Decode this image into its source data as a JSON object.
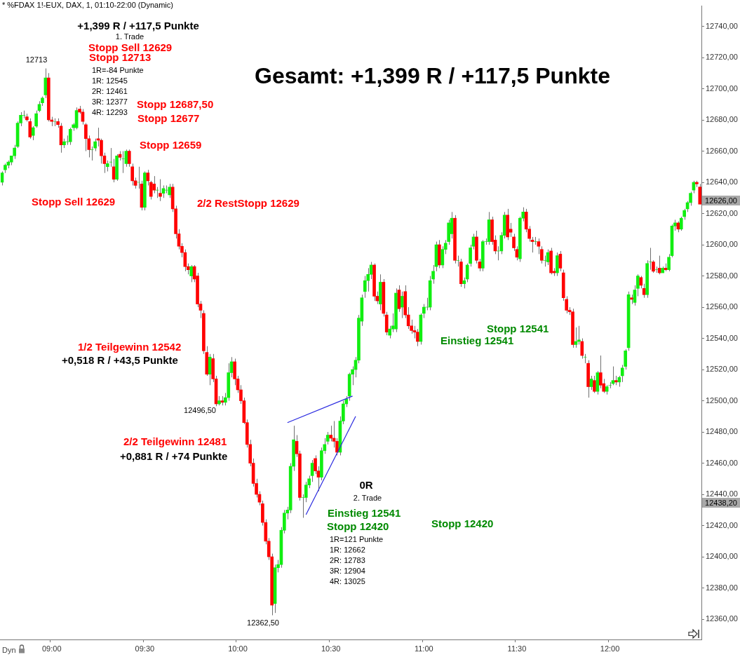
{
  "chart_data": {
    "type": "candlestick",
    "title": "* %FDAX 1!-EUX, DAX, 1, 01:10-22:00 (Dynamic)",
    "categories": [
      null,
      null,
      null,
      null,
      null,
      null,
      null,
      null,
      null,
      null,
      null,
      null,
      null,
      null,
      null,
      null,
      "09:00",
      null,
      null,
      null,
      null,
      null,
      null,
      null,
      null,
      null,
      null,
      null,
      null,
      null,
      null,
      null,
      null,
      null,
      null,
      null,
      null,
      null,
      null,
      null,
      null,
      null,
      null,
      null,
      null,
      null,
      "09:30",
      null,
      null,
      null,
      null,
      null,
      null,
      null,
      null,
      null,
      null,
      null,
      null,
      null,
      null,
      null,
      null,
      null,
      null,
      null,
      null,
      null,
      null,
      null,
      null,
      null,
      null,
      null,
      null,
      null,
      "10:00",
      null,
      null,
      null,
      null,
      null,
      null,
      null,
      null,
      null,
      null,
      null,
      null,
      null,
      null,
      null,
      null,
      null,
      null,
      null,
      null,
      null,
      null,
      null,
      null,
      null,
      null,
      null,
      null,
      null,
      "10:30",
      null,
      null,
      null,
      null,
      null,
      null,
      null,
      null,
      null,
      null,
      null,
      null,
      null,
      null,
      null,
      null,
      null,
      null,
      null,
      null,
      null,
      null,
      null,
      null,
      null,
      null,
      null,
      null,
      null,
      "11:00",
      null,
      null,
      null,
      null,
      null,
      null,
      null,
      null,
      null,
      null,
      null,
      null,
      null,
      null,
      null,
      null,
      null,
      null,
      null,
      null,
      null,
      null,
      null,
      null,
      null,
      null,
      null,
      null,
      null,
      "11:30",
      null,
      null,
      null,
      null,
      null,
      null,
      null,
      null,
      null,
      null,
      null,
      null,
      null,
      null,
      null,
      null,
      null,
      null,
      null,
      null,
      null,
      null,
      null,
      null,
      null,
      null,
      null,
      null,
      null,
      "12:00",
      null,
      null,
      null,
      null,
      null,
      null,
      null,
      null,
      null,
      null,
      null,
      null,
      null,
      null,
      null,
      null,
      null,
      null,
      null,
      null,
      null,
      null,
      null,
      null,
      null,
      null,
      null,
      null,
      null
    ],
    "ohlc": [
      [
        12640,
        12647,
        12638,
        12646
      ],
      [
        12648,
        12652,
        12646,
        12651
      ],
      [
        12651,
        12654,
        12649,
        12653
      ],
      [
        12653,
        12657,
        12651,
        12657
      ],
      [
        12657,
        12664,
        12655,
        12662
      ],
      [
        12663,
        12679,
        12662,
        12678
      ],
      [
        12678,
        12685,
        12676,
        12683
      ],
      [
        12683,
        12686,
        12681,
        12683
      ],
      [
        12682,
        12684,
        12679,
        12680
      ],
      [
        12679,
        12681,
        12668,
        12669
      ],
      [
        12670,
        12676,
        12667,
        12675
      ],
      [
        12676,
        12686,
        12675,
        12684
      ],
      [
        12686,
        12692,
        12685,
        12690
      ],
      [
        12691,
        12695,
        12689,
        12694
      ],
      [
        12696,
        12713,
        12694,
        12707
      ],
      [
        12707,
        12710,
        12679,
        12680
      ],
      [
        12680,
        12682,
        12676,
        12679
      ],
      [
        12679,
        12681,
        12676,
        12679
      ],
      [
        12679,
        12681,
        12675,
        12677
      ],
      [
        12676,
        12678,
        12659,
        12664
      ],
      [
        12664,
        12668,
        12662,
        12666
      ],
      [
        12666,
        12670,
        12664,
        12666
      ],
      [
        12666,
        12675,
        12664,
        12674
      ],
      [
        12675,
        12678,
        12673,
        12677
      ],
      [
        12675,
        12688,
        12674,
        12686
      ],
      [
        12687,
        12689,
        12684,
        12685
      ],
      [
        12685,
        12687,
        12677,
        12679
      ],
      [
        12677,
        12678,
        12660,
        12668
      ],
      [
        12668,
        12670,
        12656,
        12661
      ],
      [
        12661,
        12663,
        12654,
        12661
      ],
      [
        12662,
        12668,
        12660,
        12666
      ],
      [
        12668,
        12675,
        12663,
        12667
      ],
      [
        12667,
        12668,
        12652,
        12657
      ],
      [
        12657,
        12659,
        12646,
        12652
      ],
      [
        12650,
        12654,
        12647,
        12652
      ],
      [
        12653,
        12662,
        12650,
        12653
      ],
      [
        12650,
        12655,
        12640,
        12642
      ],
      [
        12642,
        12658,
        12641,
        12657
      ],
      [
        12658,
        12660,
        12654,
        12656
      ],
      [
        12655,
        12660,
        12646,
        12655
      ],
      [
        12652,
        12661,
        12650,
        12660
      ],
      [
        12660,
        12661,
        12650,
        12652
      ],
      [
        12650,
        12652,
        12638,
        12641
      ],
      [
        12641,
        12643,
        12636,
        12638
      ],
      [
        12640,
        12650,
        12636,
        12640
      ],
      [
        12639,
        12641,
        12622,
        12624
      ],
      [
        12624,
        12647,
        12622,
        12646
      ],
      [
        12646,
        12648,
        12638,
        12641
      ],
      [
        12640,
        12641,
        12629,
        12631
      ],
      [
        12639,
        12644,
        12633,
        12635
      ],
      [
        12635,
        12637,
        12630,
        12635
      ],
      [
        12633,
        12642,
        12628,
        12631
      ],
      [
        12633,
        12638,
        12630,
        12636
      ],
      [
        12635,
        12638,
        12633,
        12635
      ],
      [
        12632,
        12639,
        12630,
        12637
      ],
      [
        12637,
        12639,
        12621,
        12623
      ],
      [
        12623,
        12625,
        12604,
        12607
      ],
      [
        12607,
        12610,
        12597,
        12599
      ],
      [
        12599,
        12601,
        12592,
        12595
      ],
      [
        12595,
        12597,
        12583,
        12586
      ],
      [
        12586,
        12588,
        12581,
        12584
      ],
      [
        12580,
        12587,
        12576,
        12586
      ],
      [
        12586,
        12587,
        12576,
        12578
      ],
      [
        12580,
        12582,
        12560,
        12562
      ],
      [
        12562,
        12564,
        12553,
        12558
      ],
      [
        12556,
        12558,
        12530,
        12532
      ],
      [
        12531,
        12535,
        12516,
        12517
      ],
      [
        12517,
        12530,
        12510,
        12528
      ],
      [
        12527,
        12530,
        12512,
        12514
      ],
      [
        12514,
        12516,
        12496.5,
        12498
      ],
      [
        12498,
        12503,
        12497,
        12500
      ],
      [
        12500,
        12503,
        12497,
        12499
      ],
      [
        12499,
        12505,
        12497,
        12502
      ],
      [
        12502,
        12524,
        12500,
        12518
      ],
      [
        12518,
        12528,
        12515,
        12525
      ],
      [
        12525,
        12527,
        12510,
        12514
      ],
      [
        12514,
        12516,
        12505,
        12507
      ],
      [
        12507,
        12510,
        12498,
        12500
      ],
      [
        12500,
        12502,
        12485,
        12486
      ],
      [
        12486,
        12488,
        12470,
        12472
      ],
      [
        12472,
        12475,
        12458,
        12460
      ],
      [
        12460,
        12463,
        12445,
        12447
      ],
      [
        12447,
        12450,
        12438,
        12440
      ],
      [
        12440,
        12442,
        12433,
        12435
      ],
      [
        12434,
        12436,
        12420,
        12422
      ],
      [
        12422,
        12424,
        12408,
        12410
      ],
      [
        12410,
        12412,
        12398,
        12400
      ],
      [
        12400,
        12402,
        12362.5,
        12369
      ],
      [
        12370,
        12395,
        12364,
        12393
      ],
      [
        12393,
        12398,
        12390,
        12395
      ],
      [
        12395,
        12419,
        12393,
        12417
      ],
      [
        12417,
        12430,
        12415,
        12428
      ],
      [
        12428,
        12432,
        12424,
        12430
      ],
      [
        12430,
        12460,
        12428,
        12458
      ],
      [
        12458,
        12484,
        12455,
        12475
      ],
      [
        12474,
        12478,
        12464,
        12466
      ],
      [
        12466,
        12468,
        12436,
        12438
      ],
      [
        12438,
        12440,
        12425,
        12438
      ],
      [
        12438,
        12448,
        12435,
        12446
      ],
      [
        12446,
        12452,
        12444,
        12450
      ],
      [
        12452,
        12462,
        12448,
        12460
      ],
      [
        12463,
        12465,
        12453,
        12455
      ],
      [
        12455,
        12458,
        12442,
        12451
      ],
      [
        12451,
        12470,
        12449,
        12468
      ],
      [
        12468,
        12476,
        12466,
        12472
      ],
      [
        12474,
        12480,
        12472,
        12478
      ],
      [
        12478,
        12484,
        12474,
        12476
      ],
      [
        12476,
        12487,
        12470,
        12474
      ],
      [
        12474,
        12476,
        12465,
        12467
      ],
      [
        12467,
        12490,
        12465,
        12487
      ],
      [
        12487,
        12500,
        12485,
        12498
      ],
      [
        12498,
        12503,
        12496,
        12501
      ],
      [
        12503,
        12518,
        12500,
        12517
      ],
      [
        12517,
        12522,
        12510,
        12520
      ],
      [
        12520,
        12528,
        12515,
        12526
      ],
      [
        12526,
        12555,
        12524,
        12553
      ],
      [
        12551,
        12568,
        12548,
        12566
      ],
      [
        12570,
        12580,
        12566,
        12577
      ],
      [
        12577,
        12585,
        12570,
        12581
      ],
      [
        12581,
        12589,
        12578,
        12587
      ],
      [
        12587,
        12588,
        12564,
        12567
      ],
      [
        12567,
        12570,
        12562,
        12564
      ],
      [
        12562,
        12581,
        12558,
        12576
      ],
      [
        12576,
        12578,
        12554,
        12556
      ],
      [
        12555,
        12557,
        12542,
        12544
      ],
      [
        12542,
        12548,
        12540,
        12546
      ],
      [
        12546,
        12556,
        12544,
        12548
      ],
      [
        12546,
        12572,
        12544,
        12569
      ],
      [
        12571,
        12574,
        12557,
        12559
      ],
      [
        12560,
        12570,
        12553,
        12567
      ],
      [
        12570,
        12574,
        12553,
        12555
      ],
      [
        12555,
        12560,
        12546,
        12548
      ],
      [
        12548,
        12552,
        12543,
        12545
      ],
      [
        12545,
        12548,
        12540,
        12544
      ],
      [
        12544,
        12546,
        12535,
        12538
      ],
      [
        12538,
        12556,
        12536,
        12555
      ],
      [
        12556,
        12562,
        12553,
        12560
      ],
      [
        12560,
        12566,
        12558,
        12560
      ],
      [
        12560,
        12580,
        12558,
        12577
      ],
      [
        12578,
        12587,
        12575,
        12583
      ],
      [
        12586,
        12602,
        12583,
        12600
      ],
      [
        12600,
        12603,
        12585,
        12587
      ],
      [
        12587,
        12599,
        12585,
        12597
      ],
      [
        12597,
        12603,
        12594,
        12601
      ],
      [
        12602,
        12616,
        12600,
        12614
      ],
      [
        12607,
        12621,
        12604,
        12617
      ],
      [
        12617,
        12619,
        12588,
        12590
      ],
      [
        12590,
        12593,
        12586,
        12590
      ],
      [
        12589,
        12591,
        12573,
        12575
      ],
      [
        12575,
        12579,
        12572,
        12577
      ],
      [
        12578,
        12588,
        12576,
        12587
      ],
      [
        12588,
        12600,
        12586,
        12598
      ],
      [
        12599,
        12607,
        12597,
        12605
      ],
      [
        12605,
        12609,
        12588,
        12590
      ],
      [
        12589,
        12591,
        12583,
        12585
      ],
      [
        12585,
        12603,
        12583,
        12602
      ],
      [
        12602,
        12604,
        12600,
        12602
      ],
      [
        12602,
        12621,
        12600,
        12616
      ],
      [
        12616,
        12618,
        12600,
        12602
      ],
      [
        12603,
        12606,
        12594,
        12596
      ],
      [
        12596,
        12599,
        12590,
        12596
      ],
      [
        12596,
        12608,
        12594,
        12606
      ],
      [
        12606,
        12621,
        12604,
        12619
      ],
      [
        12619,
        12623,
        12603,
        12605
      ],
      [
        12610,
        12614,
        12605,
        12608
      ],
      [
        12605,
        12607,
        12596,
        12598
      ],
      [
        12597,
        12599,
        12590,
        12592
      ],
      [
        12591,
        12618,
        12589,
        12617
      ],
      [
        12617,
        12624,
        12615,
        12621
      ],
      [
        12621,
        12623,
        12608,
        12610
      ],
      [
        12610,
        12612,
        12602,
        12604
      ],
      [
        12603,
        12605,
        12595,
        12602
      ],
      [
        12602,
        12605,
        12600,
        12602
      ],
      [
        12602,
        12604,
        12594,
        12599
      ],
      [
        12597,
        12599,
        12588,
        12590
      ],
      [
        12590,
        12593,
        12586,
        12590
      ],
      [
        12589,
        12597,
        12587,
        12595
      ],
      [
        12596,
        12598,
        12581,
        12582
      ],
      [
        12583,
        12585,
        12580,
        12582
      ],
      [
        12582,
        12595,
        12580,
        12593
      ],
      [
        12594,
        12596,
        12583,
        12585
      ],
      [
        12582,
        12584,
        12564,
        12566
      ],
      [
        12565,
        12567,
        12556,
        12558
      ],
      [
        12558,
        12560,
        12555,
        12557
      ],
      [
        12557,
        12559,
        12534,
        12536
      ],
      [
        12536,
        12547,
        12534,
        12538
      ],
      [
        12538,
        12548,
        12536,
        12539
      ],
      [
        12538,
        12540,
        12527,
        12529
      ],
      [
        12528,
        12530,
        12524,
        12528
      ],
      [
        12524,
        12526,
        12502,
        12509
      ],
      [
        12509,
        12516,
        12507,
        12514
      ],
      [
        12513,
        12516,
        12505,
        12506
      ],
      [
        12506,
        12519,
        12504,
        12518
      ],
      [
        12518,
        12529,
        12508,
        12510
      ],
      [
        12511,
        12514,
        12505,
        12506
      ],
      [
        12506,
        12510,
        12504,
        12509
      ],
      [
        12510,
        12512,
        12508,
        12510
      ],
      [
        12511,
        12522,
        12510,
        12513
      ],
      [
        12513,
        12516,
        12510,
        12512
      ],
      [
        12512,
        12516,
        12509,
        12515
      ],
      [
        12516,
        12523,
        12512,
        12521
      ],
      [
        12522,
        12533,
        12520,
        12532
      ],
      [
        12534,
        12570,
        12532,
        12568
      ],
      [
        12566,
        12568,
        12562,
        12565
      ],
      [
        12563,
        12574,
        12561,
        12571
      ],
      [
        12572,
        12581,
        12567,
        12580
      ],
      [
        12579,
        12580,
        12572,
        12574
      ],
      [
        12572,
        12575,
        12566,
        12568
      ],
      [
        12568,
        12590,
        12566,
        12588
      ],
      [
        12589,
        12598,
        12584,
        12589
      ],
      [
        12589,
        12590,
        12582,
        12583
      ],
      [
        12584,
        12586,
        12582,
        12584
      ],
      [
        12585,
        12593,
        12581,
        12582
      ],
      [
        12582,
        12586,
        12582,
        12585
      ],
      [
        12585,
        12588,
        12583,
        12584
      ],
      [
        12584,
        12594,
        12583,
        12592
      ],
      [
        12593,
        12613,
        12592,
        12612
      ],
      [
        12612,
        12616,
        12609,
        12614
      ],
      [
        12614,
        12615,
        12608,
        12610
      ],
      [
        12610,
        12618,
        12609,
        12617
      ],
      [
        12618,
        12623,
        12616,
        12622
      ],
      [
        12623,
        12628,
        12621,
        12627
      ],
      [
        12627,
        12634,
        12625,
        12633
      ],
      [
        12635,
        12641,
        12633,
        12640
      ],
      [
        12640,
        12641,
        12637,
        12639
      ],
      [
        12637,
        12639,
        12626,
        12626
      ]
    ],
    "ylim": [
      12347,
      12753
    ],
    "yticks": [
      {
        "value": 12360,
        "label": "12360,00"
      },
      {
        "value": 12380,
        "label": "12380,00"
      },
      {
        "value": 12400,
        "label": "12400,00"
      },
      {
        "value": 12420,
        "label": "12420,00"
      },
      {
        "value": 12440,
        "label": "12440,00"
      },
      {
        "value": 12460,
        "label": "12460,00"
      },
      {
        "value": 12480,
        "label": "12480,00"
      },
      {
        "value": 12500,
        "label": "12500,00"
      },
      {
        "value": 12520,
        "label": "12520,00"
      },
      {
        "value": 12540,
        "label": "12540,00"
      },
      {
        "value": 12560,
        "label": "12560,00"
      },
      {
        "value": 12580,
        "label": "12580,00"
      },
      {
        "value": 12600,
        "label": "12600,00"
      },
      {
        "value": 12620,
        "label": "12620,00"
      },
      {
        "value": 12640,
        "label": "12640,00"
      },
      {
        "value": 12660,
        "label": "12660,00"
      },
      {
        "value": 12680,
        "label": "12680,00"
      },
      {
        "value": 12700,
        "label": "12700,00"
      },
      {
        "value": 12720,
        "label": "12720,00"
      },
      {
        "value": 12740,
        "label": "12740,00"
      }
    ],
    "annotations": [
      "+1,399 R / +117,5 Punkte",
      "1. Trade",
      "Stopp Sell 12629",
      "Stopp 12713",
      "1R=-84 Punkte",
      "1R: 12545",
      "2R: 12461",
      "3R: 12377",
      "4R: 12293",
      "Stopp 12687,50",
      "Stopp 12677",
      "Stopp 12659",
      "Stopp Sell 12629",
      "2/2 RestStopp 12629",
      "Gesamt: +1,399 R / +117,5 Punkte",
      "Stopp 12541",
      "Einstieg 12541",
      "1/2 Teilgewinn 12542",
      "+0,518 R / +43,5 Punkte",
      "2/2 Teilgewinn 12481",
      "+0,881 R / +74 Punkte",
      "0R",
      "2. Trade",
      "Einstieg 12541",
      "Stopp 12420",
      "Stopp 12420",
      "1R=121 Punkte",
      "1R: 12662",
      "2R: 12783",
      "3R: 12904",
      "4R: 13025",
      "12713",
      "12496,50",
      "12362,50",
      "12626,00",
      "12438,20",
      "Dyn"
    ],
    "series": [
      {
        "type": "line",
        "color": "#2a2ae0",
        "values": [
          null,
          null,
          null,
          null,
          null,
          null,
          null,
          null,
          null,
          null,
          null,
          null,
          null,
          null,
          null,
          null,
          null,
          null,
          null,
          null,
          null,
          null,
          null,
          null,
          null,
          null,
          null,
          null,
          null,
          null,
          null,
          null,
          null,
          null,
          null,
          null,
          null,
          null,
          null,
          null,
          null,
          null,
          null,
          null,
          null,
          null,
          null,
          null,
          null,
          null,
          null,
          null,
          null,
          null,
          null,
          null,
          null,
          null,
          null,
          null,
          null,
          null,
          null,
          null,
          null,
          null,
          null,
          null,
          null,
          null,
          null,
          null,
          null,
          null,
          null,
          null,
          null,
          null,
          null,
          null,
          null,
          null,
          null,
          null,
          null,
          null,
          null,
          null,
          null,
          null,
          null,
          null,
          12486,
          null,
          null,
          null,
          null,
          null,
          null,
          null,
          null,
          null,
          null,
          null,
          null,
          null,
          null,
          null,
          null,
          null,
          null,
          null,
          null,
          12503,
          null,
          null,
          null,
          null,
          null,
          null,
          null,
          null,
          null,
          null,
          null,
          null,
          null,
          null,
          null,
          null,
          null,
          null,
          null,
          null,
          null,
          null,
          null,
          null,
          null,
          null,
          null,
          null,
          null,
          null,
          null,
          null,
          null,
          null,
          null,
          null,
          null,
          null,
          null,
          null,
          null,
          null,
          null,
          null,
          null,
          null,
          null,
          null,
          null,
          null,
          null,
          null,
          null,
          null,
          null,
          null,
          null,
          null,
          null,
          null,
          null,
          null,
          null,
          null,
          null,
          null,
          null,
          null,
          null,
          null,
          null,
          null,
          null,
          null,
          null,
          null,
          null,
          null,
          null,
          null,
          null,
          null,
          null,
          null,
          null,
          null,
          null,
          null,
          null,
          null,
          null,
          null,
          null,
          null,
          null,
          null,
          null,
          null,
          null,
          null,
          null,
          null,
          null,
          null,
          null,
          null,
          null,
          null,
          null,
          null,
          null,
          null
        ]
      },
      {
        "type": "line",
        "color": "#2a2ae0",
        "values": [
          null,
          null,
          null,
          null,
          null,
          null,
          null,
          null,
          null,
          null,
          null,
          null,
          null,
          null,
          null,
          null,
          null,
          null,
          null,
          null,
          null,
          null,
          null,
          null,
          null,
          null,
          null,
          null,
          null,
          null,
          null,
          null,
          null,
          null,
          null,
          null,
          null,
          null,
          null,
          null,
          null,
          null,
          null,
          null,
          null,
          null,
          null,
          null,
          null,
          null,
          null,
          null,
          null,
          null,
          null,
          null,
          null,
          null,
          null,
          null,
          null,
          null,
          null,
          null,
          null,
          null,
          null,
          null,
          null,
          null,
          null,
          null,
          null,
          null,
          null,
          null,
          null,
          null,
          null,
          null,
          null,
          null,
          null,
          null,
          null,
          null,
          null,
          null,
          null,
          null,
          null,
          null,
          null,
          null,
          null,
          null,
          null,
          null,
          12427,
          null,
          null,
          null,
          null,
          null,
          null,
          null,
          null,
          null,
          null,
          null,
          null,
          null,
          null,
          null,
          12490,
          null,
          null,
          null,
          null,
          null,
          null,
          null,
          null,
          null,
          null,
          null,
          null,
          null,
          null,
          null,
          null,
          null,
          null,
          null,
          null,
          null,
          null,
          null,
          null,
          null,
          null,
          null,
          null,
          null,
          null,
          null,
          null,
          null,
          null,
          null,
          null,
          null,
          null,
          null,
          null,
          null,
          null,
          null,
          null,
          null,
          null,
          null,
          null,
          null,
          null,
          null,
          null,
          null,
          null,
          null,
          null,
          null,
          null,
          null,
          null,
          null,
          null,
          null,
          null,
          null,
          null,
          null,
          null,
          null,
          null,
          null,
          null,
          null,
          null,
          null,
          null,
          null,
          null,
          null,
          null,
          null,
          null,
          null,
          null,
          null,
          null,
          null,
          null,
          null,
          null,
          null,
          null,
          null,
          null,
          null,
          null,
          null,
          null,
          null,
          null,
          null,
          null,
          null,
          null,
          null,
          null,
          null,
          null,
          null,
          null,
          null
        ]
      }
    ]
  }
}
